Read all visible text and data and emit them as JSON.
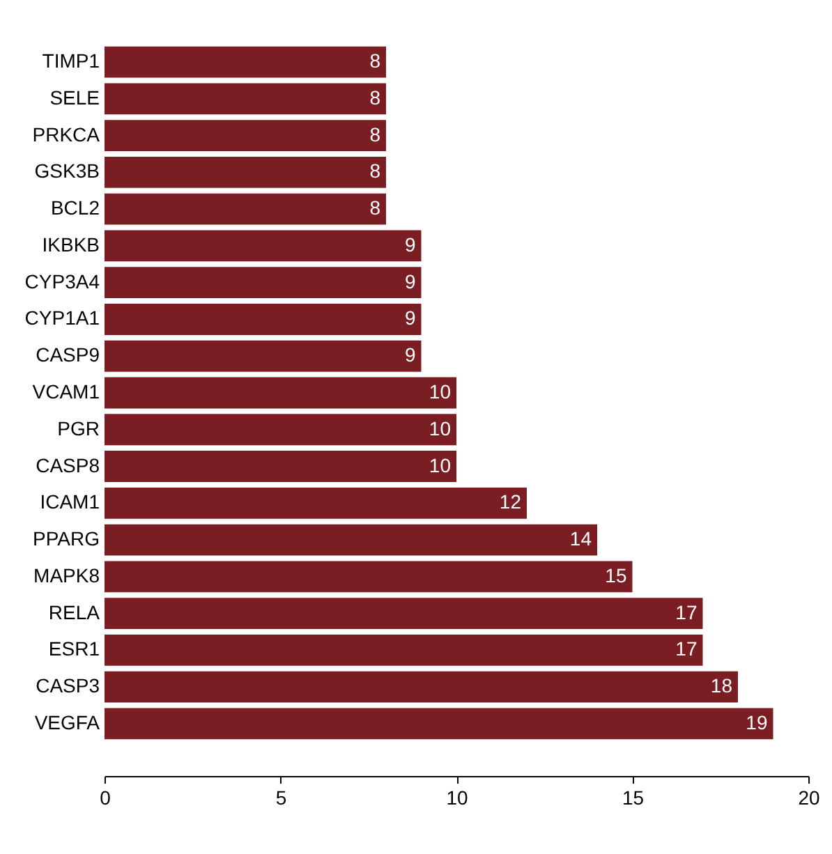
{
  "chart_data": {
    "type": "bar",
    "orientation": "horizontal",
    "categories": [
      "TIMP1",
      "SELE",
      "PRKCA",
      "GSK3B",
      "BCL2",
      "IKBKB",
      "CYP3A4",
      "CYP1A1",
      "CASP9",
      "VCAM1",
      "PGR",
      "CASP8",
      "ICAM1",
      "PPARG",
      "MAPK8",
      "RELA",
      "ESR1",
      "CASP3",
      "VEGFA"
    ],
    "values": [
      8,
      8,
      8,
      8,
      8,
      9,
      9,
      9,
      9,
      10,
      10,
      10,
      12,
      14,
      15,
      17,
      17,
      18,
      19
    ],
    "color": "#7a1e23",
    "xlim": [
      0,
      20
    ],
    "xticks": [
      0,
      5,
      10,
      15,
      20
    ],
    "grid": false,
    "data_labels": true
  }
}
